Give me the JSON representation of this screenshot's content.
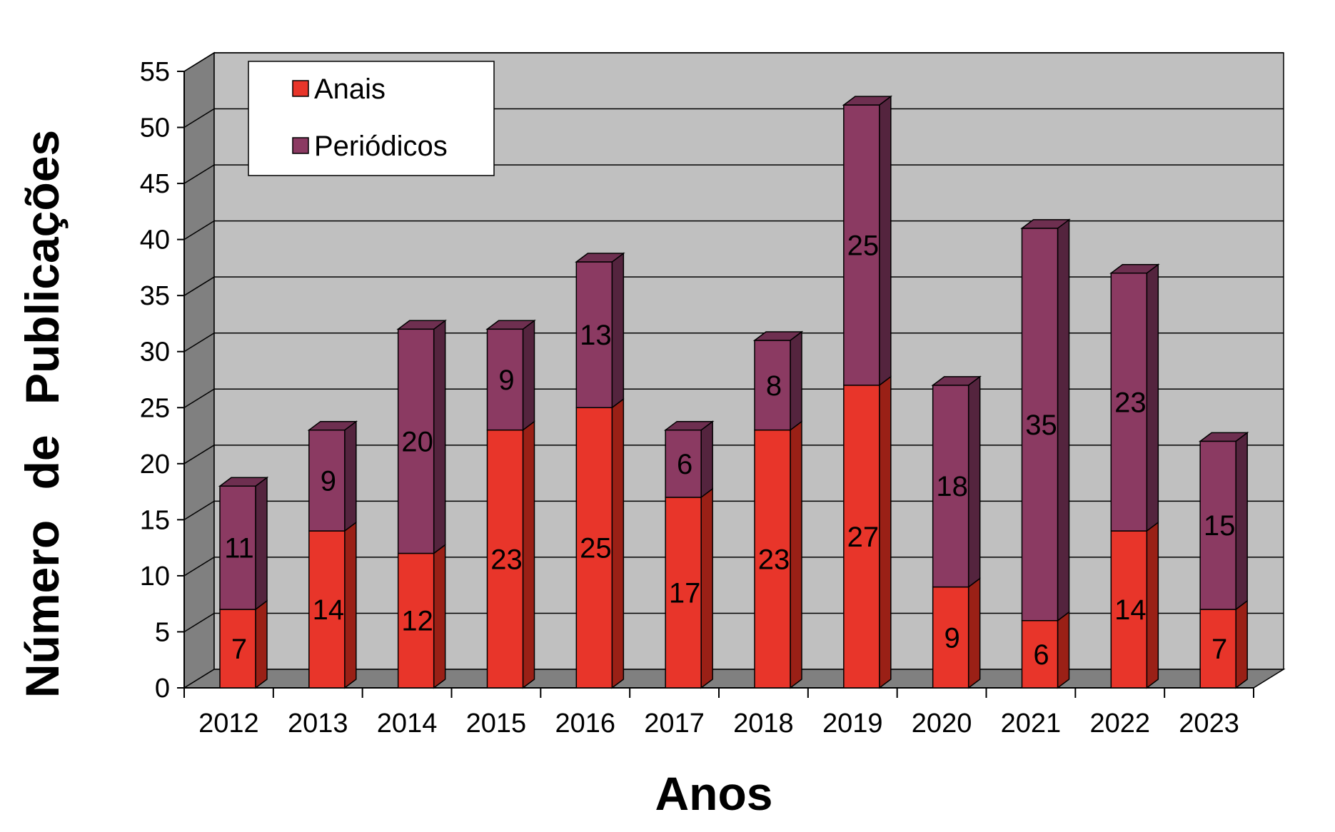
{
  "chart_data": {
    "type": "bar",
    "stacked": true,
    "three_d": true,
    "categories": [
      "2012",
      "2013",
      "2014",
      "2015",
      "2016",
      "2017",
      "2018",
      "2019",
      "2020",
      "2021",
      "2022",
      "2023"
    ],
    "series": [
      {
        "name": "Anais",
        "values": [
          7,
          14,
          12,
          23,
          25,
          17,
          23,
          27,
          9,
          6,
          14,
          7
        ],
        "color": "#e8352a"
      },
      {
        "name": "Periódicos",
        "values": [
          11,
          9,
          20,
          9,
          13,
          6,
          8,
          25,
          18,
          35,
          23,
          15
        ],
        "color": "#8b3a62"
      }
    ],
    "xlabel": "Anos",
    "ylabel": "Número de Publicações",
    "ylim": [
      0,
      55
    ],
    "yticks": [
      0,
      5,
      10,
      15,
      20,
      25,
      30,
      35,
      40,
      45,
      50,
      55
    ],
    "grid": true,
    "legend": "top-left",
    "colors": {
      "wall": "#c0c0c0",
      "side_wall": "#808080",
      "floor": "#808080",
      "anais_side": "#9a2016",
      "periodicos_side": "#54243e",
      "anais_top": "#b52a20",
      "periodicos_top": "#6e2f50"
    }
  }
}
